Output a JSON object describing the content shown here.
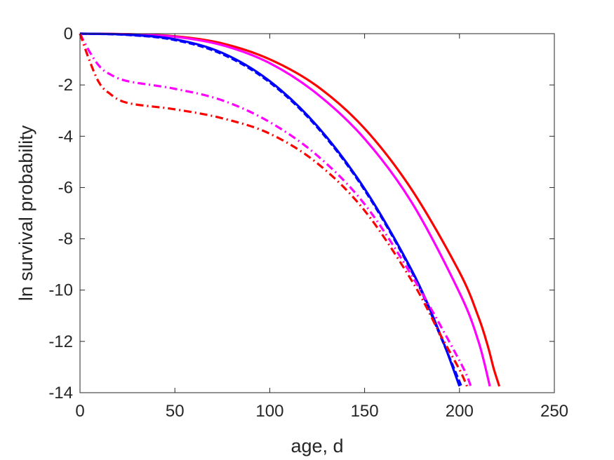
{
  "chart_data": {
    "type": "line",
    "title": "",
    "xlabel": "age, d",
    "ylabel": "ln survival probability",
    "xlim": [
      0,
      250
    ],
    "ylim": [
      -14,
      0
    ],
    "xticks": [
      0,
      50,
      100,
      150,
      200,
      250
    ],
    "yticks": [
      -14,
      -12,
      -10,
      -8,
      -6,
      -4,
      -2,
      0
    ],
    "grid": false,
    "legend": "none",
    "series": [
      {
        "color": "#ff0000",
        "style": "solid",
        "points": [
          [
            0,
            0
          ],
          [
            25,
            -0.02
          ],
          [
            50,
            -0.1
          ],
          [
            75,
            -0.38
          ],
          [
            100,
            -1.0
          ],
          [
            125,
            -2.05
          ],
          [
            150,
            -3.7
          ],
          [
            175,
            -6.1
          ],
          [
            200,
            -9.3
          ],
          [
            210,
            -11.05
          ],
          [
            215,
            -12.2
          ],
          [
            218,
            -13.05
          ],
          [
            221,
            -13.75
          ]
        ]
      },
      {
        "color": "#ff00ff",
        "style": "solid",
        "points": [
          [
            0,
            0
          ],
          [
            25,
            -0.02
          ],
          [
            50,
            -0.12
          ],
          [
            75,
            -0.45
          ],
          [
            100,
            -1.15
          ],
          [
            125,
            -2.35
          ],
          [
            150,
            -4.1
          ],
          [
            175,
            -6.6
          ],
          [
            200,
            -10.1
          ],
          [
            210,
            -12.0
          ],
          [
            216,
            -13.75
          ]
        ]
      },
      {
        "color": "#0000ff",
        "style": "solid",
        "points": [
          [
            0,
            0
          ],
          [
            25,
            -0.04
          ],
          [
            50,
            -0.22
          ],
          [
            75,
            -0.75
          ],
          [
            100,
            -1.85
          ],
          [
            125,
            -3.6
          ],
          [
            150,
            -6.05
          ],
          [
            175,
            -9.25
          ],
          [
            190,
            -11.75
          ],
          [
            200,
            -13.75
          ]
        ]
      },
      {
        "color": "#0000ff",
        "style": "dashed",
        "points": [
          [
            0,
            0
          ],
          [
            25,
            -0.05
          ],
          [
            50,
            -0.25
          ],
          [
            75,
            -0.8
          ],
          [
            100,
            -1.9
          ],
          [
            125,
            -3.65
          ],
          [
            150,
            -6.1
          ],
          [
            175,
            -9.3
          ],
          [
            190,
            -11.8
          ],
          [
            201,
            -13.75
          ]
        ]
      },
      {
        "color": "#ff00ff",
        "style": "dashdot",
        "points": [
          [
            0,
            0
          ],
          [
            5,
            -0.7
          ],
          [
            10,
            -1.25
          ],
          [
            15,
            -1.55
          ],
          [
            25,
            -1.85
          ],
          [
            50,
            -2.15
          ],
          [
            75,
            -2.6
          ],
          [
            100,
            -3.45
          ],
          [
            125,
            -4.75
          ],
          [
            150,
            -6.65
          ],
          [
            175,
            -9.45
          ],
          [
            200,
            -12.75
          ],
          [
            206,
            -13.75
          ]
        ]
      },
      {
        "color": "#ff0000",
        "style": "dashdot",
        "points": [
          [
            0,
            0
          ],
          [
            5,
            -1.05
          ],
          [
            10,
            -1.9
          ],
          [
            15,
            -2.3
          ],
          [
            25,
            -2.7
          ],
          [
            50,
            -2.95
          ],
          [
            75,
            -3.3
          ],
          [
            100,
            -3.9
          ],
          [
            125,
            -5.05
          ],
          [
            150,
            -6.9
          ],
          [
            175,
            -9.65
          ],
          [
            190,
            -11.75
          ],
          [
            200,
            -13.1
          ],
          [
            204,
            -13.75
          ]
        ]
      }
    ]
  }
}
